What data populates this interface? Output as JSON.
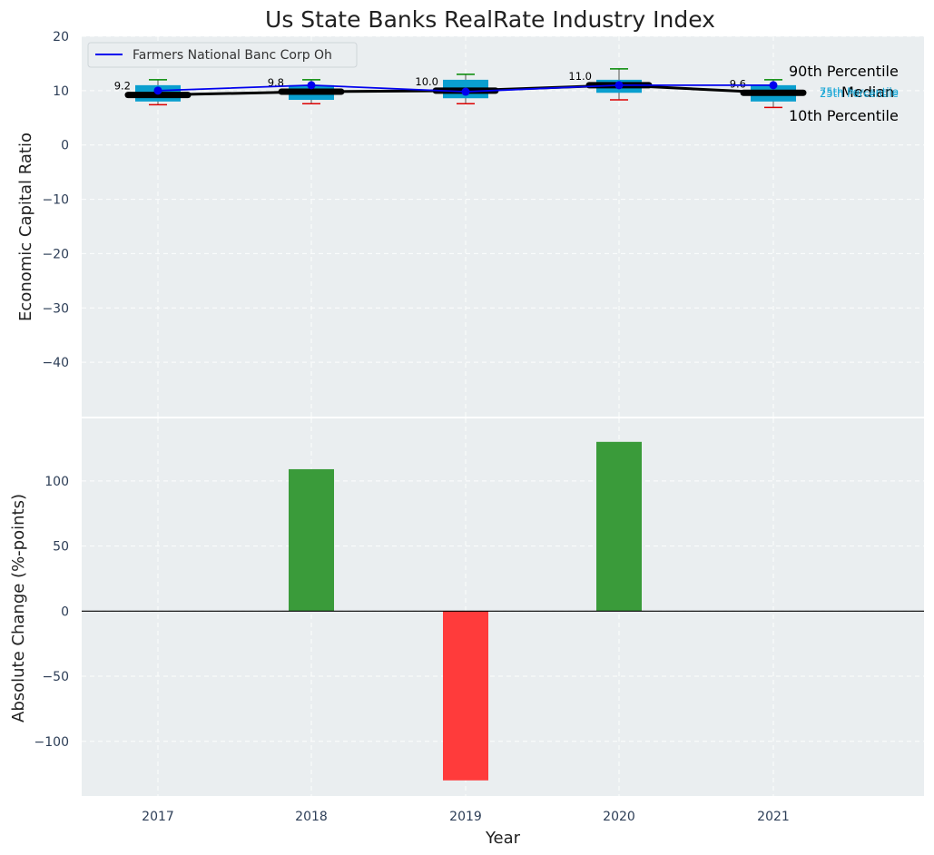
{
  "colors": {
    "plot_bg": "#eaeef0",
    "box": "#0a9fcf",
    "company_line": "#0000ee",
    "median": "#000000",
    "whisker_high": "#008800",
    "whisker_low": "#dd0000",
    "pos_bar": "#3a9b3a",
    "neg_bar": "#ff3b3b"
  },
  "chart_data": [
    {
      "type": "box",
      "title": "Us State Banks RealRate Industry Index",
      "ylabel": "Economic Capital Ratio",
      "xlabel": "",
      "ylim": [
        -50,
        20
      ],
      "yticks": [
        20,
        10,
        0,
        -10,
        -20,
        -30,
        -40
      ],
      "categories": [
        "2017",
        "2018",
        "2019",
        "2020",
        "2021"
      ],
      "p10": [
        7.4,
        7.6,
        7.6,
        8.3,
        6.9
      ],
      "p25": [
        8.0,
        8.3,
        8.6,
        9.6,
        8.0
      ],
      "median": [
        9.2,
        9.8,
        10.0,
        11.0,
        9.6
      ],
      "p75": [
        11.0,
        11.0,
        12.0,
        12.0,
        11.0
      ],
      "p90": [
        12.0,
        12.0,
        13.0,
        14.0,
        12.0
      ],
      "median_labels": [
        "9.2",
        "9.8",
        "10.0",
        "11.0",
        "9.6"
      ],
      "company_series": {
        "name": "Farmers National Banc Corp Oh",
        "values": [
          10.0,
          11.0,
          9.8,
          11.0,
          11.0
        ]
      },
      "legend": [
        "Farmers National Banc Corp Oh"
      ],
      "legend_position": "top-left",
      "annotations": {
        "p90": "90th Percentile",
        "p75": "75th Percentile",
        "median": "Median",
        "p25": "25th Percentile",
        "p10": "10th Percentile"
      }
    },
    {
      "type": "bar",
      "ylabel": "Absolute Change (%-points)",
      "xlabel": "Year",
      "ylim": [
        -142,
        148
      ],
      "yticks": [
        100,
        50,
        0,
        -50,
        -100
      ],
      "categories": [
        "2017",
        "2018",
        "2019",
        "2020",
        "2021"
      ],
      "values": [
        0,
        109,
        -130,
        130,
        0
      ]
    }
  ]
}
